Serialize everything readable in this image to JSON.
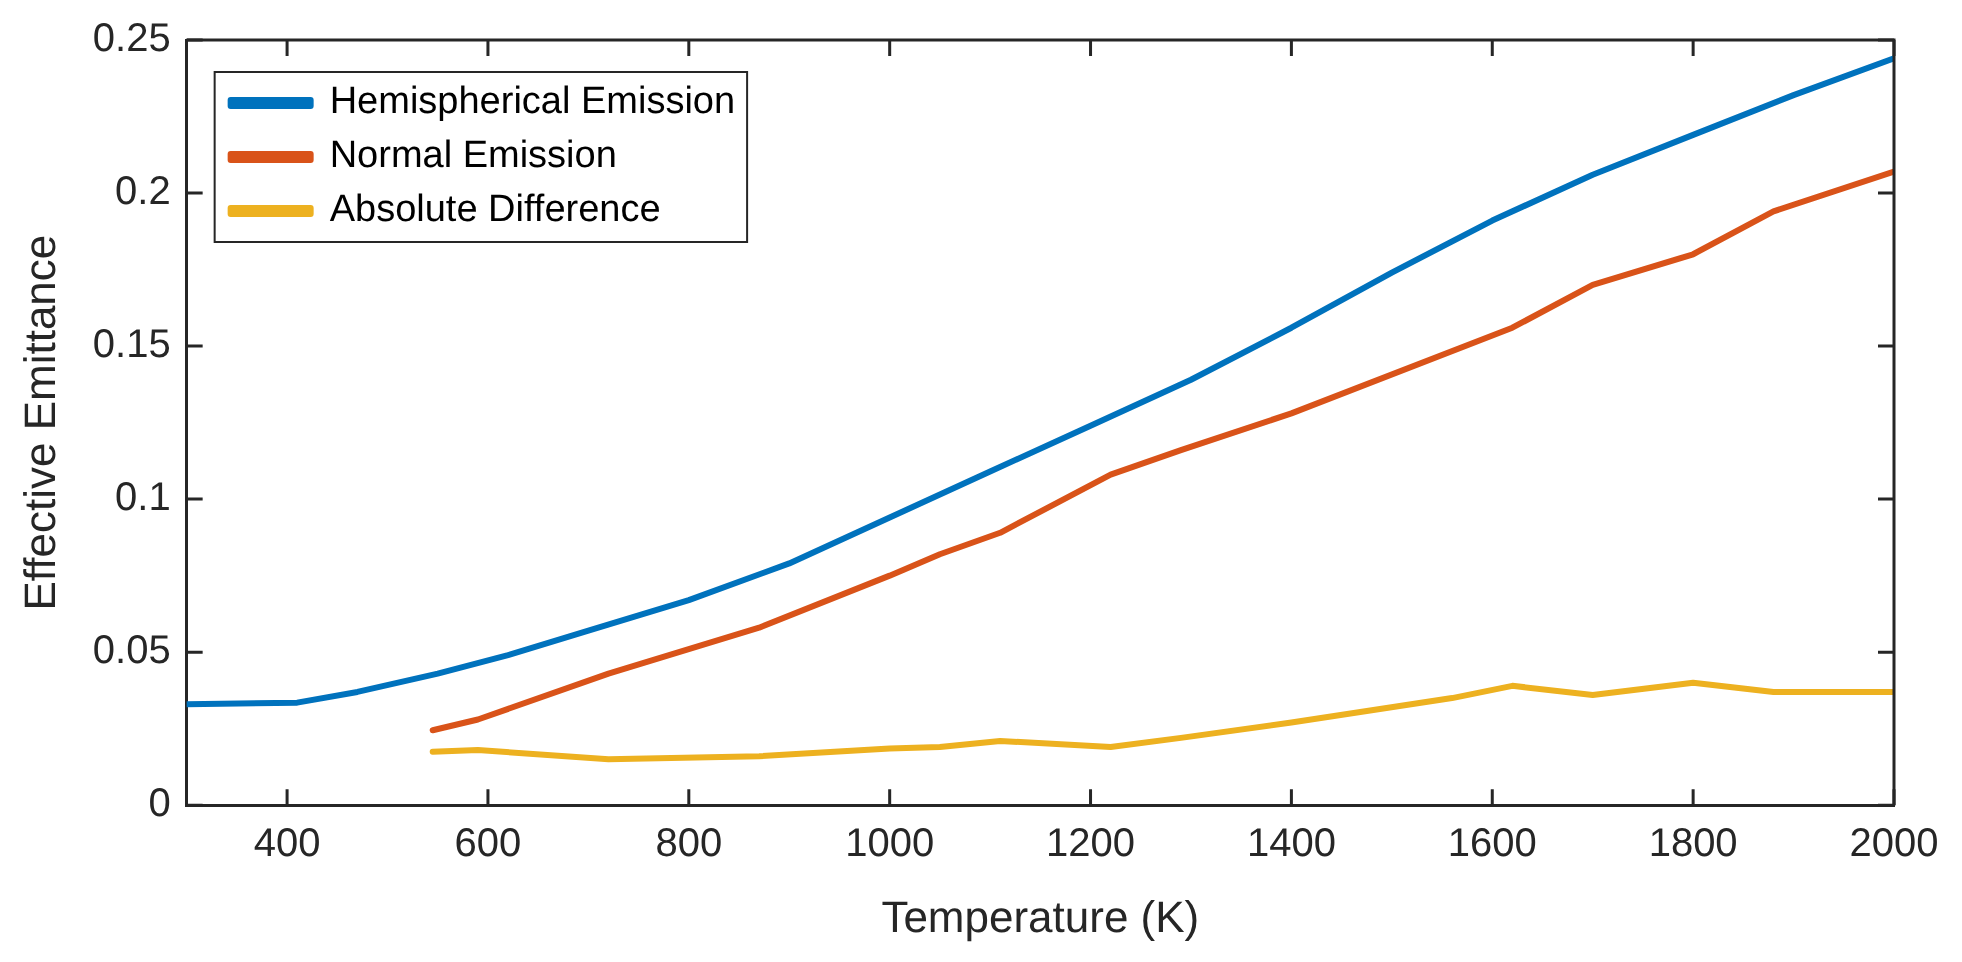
{
  "chart_data": {
    "type": "line",
    "xlabel": "Temperature (K)",
    "ylabel": "Effective Emittance",
    "xlim": [
      300,
      2000
    ],
    "xticks": [
      400,
      600,
      800,
      1000,
      1200,
      1400,
      1600,
      1800,
      2000
    ],
    "ylim": [
      0,
      0.25
    ],
    "yticks": [
      0,
      0.05,
      0.1,
      0.15,
      0.2,
      0.25
    ],
    "grid": false,
    "legend": "top left",
    "marker": "none",
    "line_style": "solid",
    "series": [
      {
        "name": "Hemispherical Emission",
        "color": "#0072bd",
        "x": [
          300,
          410,
          470,
          550,
          620,
          700,
          800,
          900,
          1000,
          1100,
          1200,
          1300,
          1400,
          1500,
          1600,
          1700,
          1800,
          1900,
          2000
        ],
        "values": [
          0.033,
          0.0335,
          0.037,
          0.043,
          0.049,
          0.057,
          0.067,
          0.079,
          0.094,
          0.109,
          0.124,
          0.139,
          0.156,
          0.174,
          0.191,
          0.206,
          0.219,
          0.232,
          0.244
        ]
      },
      {
        "name": "Normal Emission",
        "color": "#d95319",
        "x": [
          545,
          590,
          720,
          870,
          1000,
          1050,
          1110,
          1220,
          1290,
          1400,
          1620,
          1700,
          1800,
          1880,
          2000
        ],
        "values": [
          0.0245,
          0.028,
          0.043,
          0.058,
          0.075,
          0.082,
          0.089,
          0.108,
          0.116,
          0.128,
          0.156,
          0.17,
          0.18,
          0.194,
          0.207
        ]
      },
      {
        "name": "Absolute Difference",
        "color": "#edb120",
        "x": [
          545,
          590,
          720,
          870,
          1000,
          1050,
          1110,
          1220,
          1290,
          1400,
          1560,
          1620,
          1700,
          1800,
          1880,
          2000
        ],
        "values": [
          0.0175,
          0.018,
          0.015,
          0.016,
          0.0185,
          0.019,
          0.021,
          0.019,
          0.022,
          0.027,
          0.035,
          0.039,
          0.036,
          0.04,
          0.037,
          0.037
        ]
      }
    ]
  }
}
